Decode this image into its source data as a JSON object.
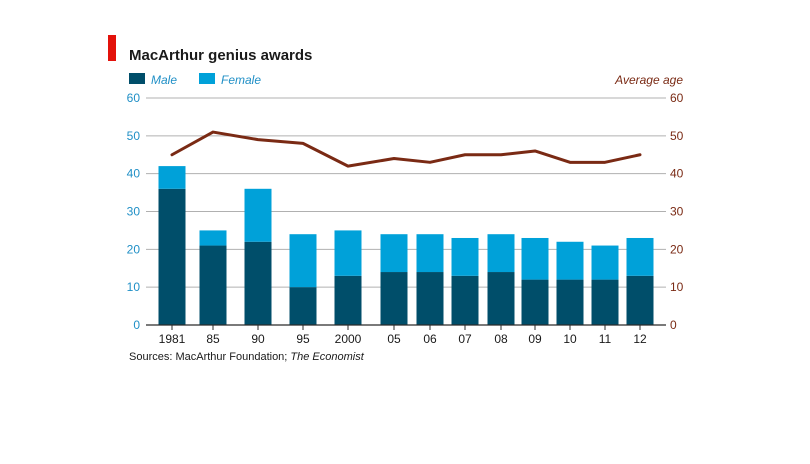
{
  "chart_data": {
    "type": "bar",
    "title": "MacArthur genius awards",
    "categories": [
      "1981",
      "85",
      "90",
      "95",
      "2000",
      "05",
      "06",
      "07",
      "08",
      "09",
      "10",
      "11",
      "12"
    ],
    "series": [
      {
        "name": "Male",
        "type": "bar",
        "stack": "awards",
        "color": "#004e6a",
        "values": [
          36,
          21,
          22,
          10,
          13,
          14,
          14,
          13,
          14,
          12,
          12,
          12,
          13
        ]
      },
      {
        "name": "Female",
        "type": "bar",
        "stack": "awards",
        "color": "#00a1d9",
        "values": [
          6,
          4,
          14,
          14,
          12,
          10,
          10,
          10,
          10,
          11,
          10,
          9,
          10
        ]
      },
      {
        "name": "Average age",
        "type": "line",
        "axis": "right",
        "color": "#7a2a14",
        "values": [
          45,
          51,
          49,
          48,
          42,
          44,
          43,
          45,
          45,
          46,
          43,
          43,
          45
        ]
      }
    ],
    "ylim": [
      0,
      60
    ],
    "yticks": [
      "0",
      "10",
      "20",
      "30",
      "40",
      "50",
      "60"
    ],
    "y2lim": [
      0,
      60
    ],
    "y2ticks": [
      "0",
      "10",
      "20",
      "30",
      "40",
      "50",
      "60"
    ],
    "y2label": "Average age",
    "grid": true,
    "legend_placement": "top-left"
  },
  "source": {
    "prefix": "Sources: MacArthur Foundation; ",
    "italic": "The Economist"
  },
  "colors": {
    "accent": "#e3120b",
    "male": "#004e6a",
    "female": "#00a1d9",
    "line": "#7a2a14",
    "grid": "#b0b0b0"
  }
}
